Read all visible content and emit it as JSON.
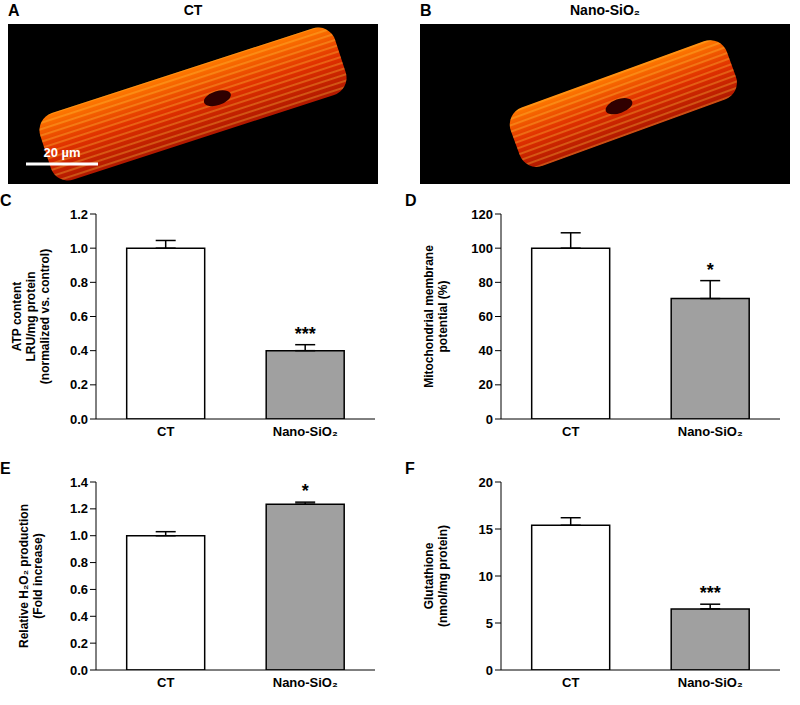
{
  "images": [
    {
      "panel": "A",
      "title": "CT",
      "scale_bar": "20 µm"
    },
    {
      "panel": "B",
      "title": "Nano-SiO₂"
    }
  ],
  "chart_data": [
    {
      "panel": "C",
      "type": "bar",
      "categories": [
        "CT",
        "Nano-SiO₂"
      ],
      "values": [
        1.0,
        0.4
      ],
      "errors": [
        0.045,
        0.035
      ],
      "colors": [
        "#ffffff",
        "#a0a0a0"
      ],
      "y_label": [
        "ATP content",
        "LRU/mg protein",
        "(normalized vs. control)"
      ],
      "ylim": [
        0,
        1.2
      ],
      "yticks": [
        {
          "value": 0,
          "label": "0.0"
        },
        0.2,
        0.4,
        0.6,
        0.8,
        {
          "value": 1,
          "label": "1.0"
        },
        1.2
      ],
      "annotations": [
        {
          "category": "Nano-SiO₂",
          "text": "***"
        }
      ],
      "grid": false
    },
    {
      "panel": "D",
      "type": "bar",
      "categories": [
        "CT",
        "Nano-SiO₂"
      ],
      "values": [
        100,
        70.5
      ],
      "errors": [
        9,
        10.5
      ],
      "colors": [
        "#ffffff",
        "#a0a0a0"
      ],
      "y_label": [
        "Mitochondrial membrane",
        "potential (%)"
      ],
      "ylim": [
        0,
        120
      ],
      "yticks": [
        0,
        20,
        40,
        60,
        80,
        100,
        120
      ],
      "annotations": [
        {
          "category": "Nano-SiO₂",
          "text": "*"
        }
      ],
      "grid": false
    },
    {
      "panel": "E",
      "type": "bar",
      "categories": [
        "CT",
        "Nano-SiO₂"
      ],
      "values": [
        1.0,
        1.235
      ],
      "errors": [
        0.03,
        0.015
      ],
      "colors": [
        "#ffffff",
        "#a0a0a0"
      ],
      "y_label": [
        "Relative H₂O₂ production",
        "(Fold increase)"
      ],
      "ylim": [
        0,
        1.4
      ],
      "yticks": [
        {
          "value": 0,
          "label": "0.0"
        },
        0.2,
        0.4,
        0.6,
        0.8,
        {
          "value": 1,
          "label": "1.0"
        },
        1.2,
        1.4
      ],
      "annotations": [
        {
          "category": "Nano-SiO₂",
          "text": "*"
        }
      ],
      "grid": false
    },
    {
      "panel": "F",
      "type": "bar",
      "categories": [
        "CT",
        "Nano-SiO₂"
      ],
      "values": [
        15.4,
        6.5
      ],
      "errors": [
        0.8,
        0.5
      ],
      "colors": [
        "#ffffff",
        "#a0a0a0"
      ],
      "y_label": [
        "Glutathione",
        "(nmol/mg protein)"
      ],
      "ylim": [
        0,
        20
      ],
      "yticks": [
        0,
        5,
        10,
        15,
        20
      ],
      "annotations": [
        {
          "category": "Nano-SiO₂",
          "text": "***"
        }
      ],
      "grid": false
    }
  ]
}
